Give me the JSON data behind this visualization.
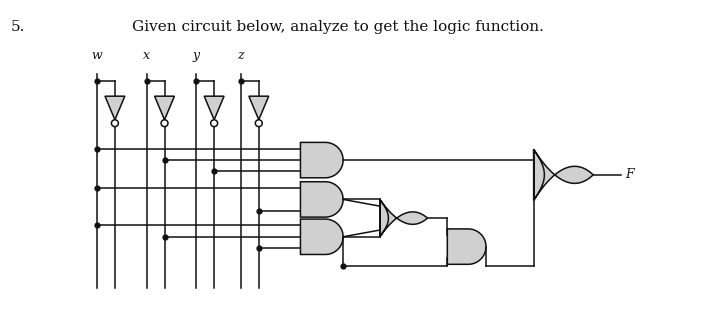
{
  "title_num": "5.",
  "title_text": "Given circuit below, analyze to get the logic function.",
  "bg_color": "#ffffff",
  "line_color": "#111111",
  "gate_fill": "#d0d0d0",
  "gate_edge": "#111111",
  "input_labels": [
    "w",
    "x",
    "y",
    "z"
  ],
  "output_label": "F"
}
